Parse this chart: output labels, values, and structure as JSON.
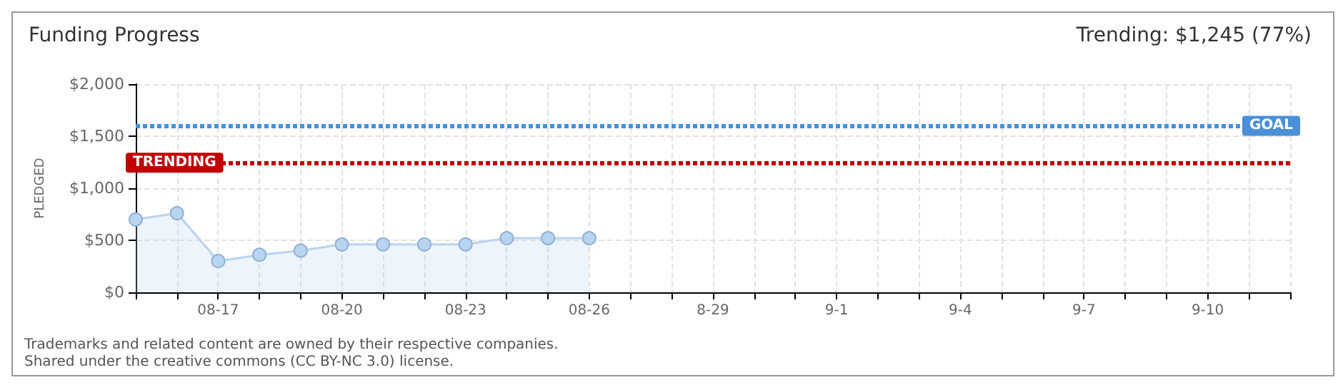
{
  "chart_data": {
    "type": "area",
    "title": "Funding Progress",
    "subtitle": "Trending: $1,245 (77%)",
    "ylabel": "PLEDGED",
    "categories": [
      null,
      null,
      "08-17",
      null,
      null,
      "08-20",
      null,
      null,
      "08-23",
      null,
      null,
      "08-26",
      null,
      null,
      "8-29",
      null,
      null,
      "9-1",
      null,
      null,
      "9-4",
      null,
      null,
      "9-7",
      null,
      null,
      "9-10",
      null,
      null
    ],
    "series": [
      {
        "color": "#b8d4f0",
        "values": [
          700,
          760,
          300,
          360,
          400,
          460,
          460,
          460,
          460,
          520,
          520,
          520,
          null,
          null,
          null,
          null,
          null,
          null,
          null,
          null,
          null,
          null,
          null,
          null,
          null,
          null,
          null,
          null,
          null
        ]
      }
    ],
    "ylim": [
      0,
      2000
    ],
    "yticks": [
      {
        "value": 0,
        "label": "$0"
      },
      {
        "value": 500,
        "label": "$500"
      },
      {
        "value": 1000,
        "label": "$1,000"
      },
      {
        "value": 1500,
        "label": "$1,500"
      },
      {
        "value": 2000,
        "label": "$2,000"
      }
    ],
    "ref_lines": [
      {
        "axis": "y",
        "value": 1600,
        "label": "GOAL",
        "color": "#4a8fd8",
        "line_style": "dotted"
      },
      {
        "axis": "y",
        "value": 1245,
        "label": "TRENDING",
        "color": "#c00000",
        "line_style": "dotted"
      }
    ],
    "annotations": [
      "Trademarks and related content are owned by their respective companies.",
      "Shared under the creative commons (CC BY-NC 3.0) license."
    ],
    "grid": true,
    "marker": "circle",
    "line_style": "solid"
  }
}
